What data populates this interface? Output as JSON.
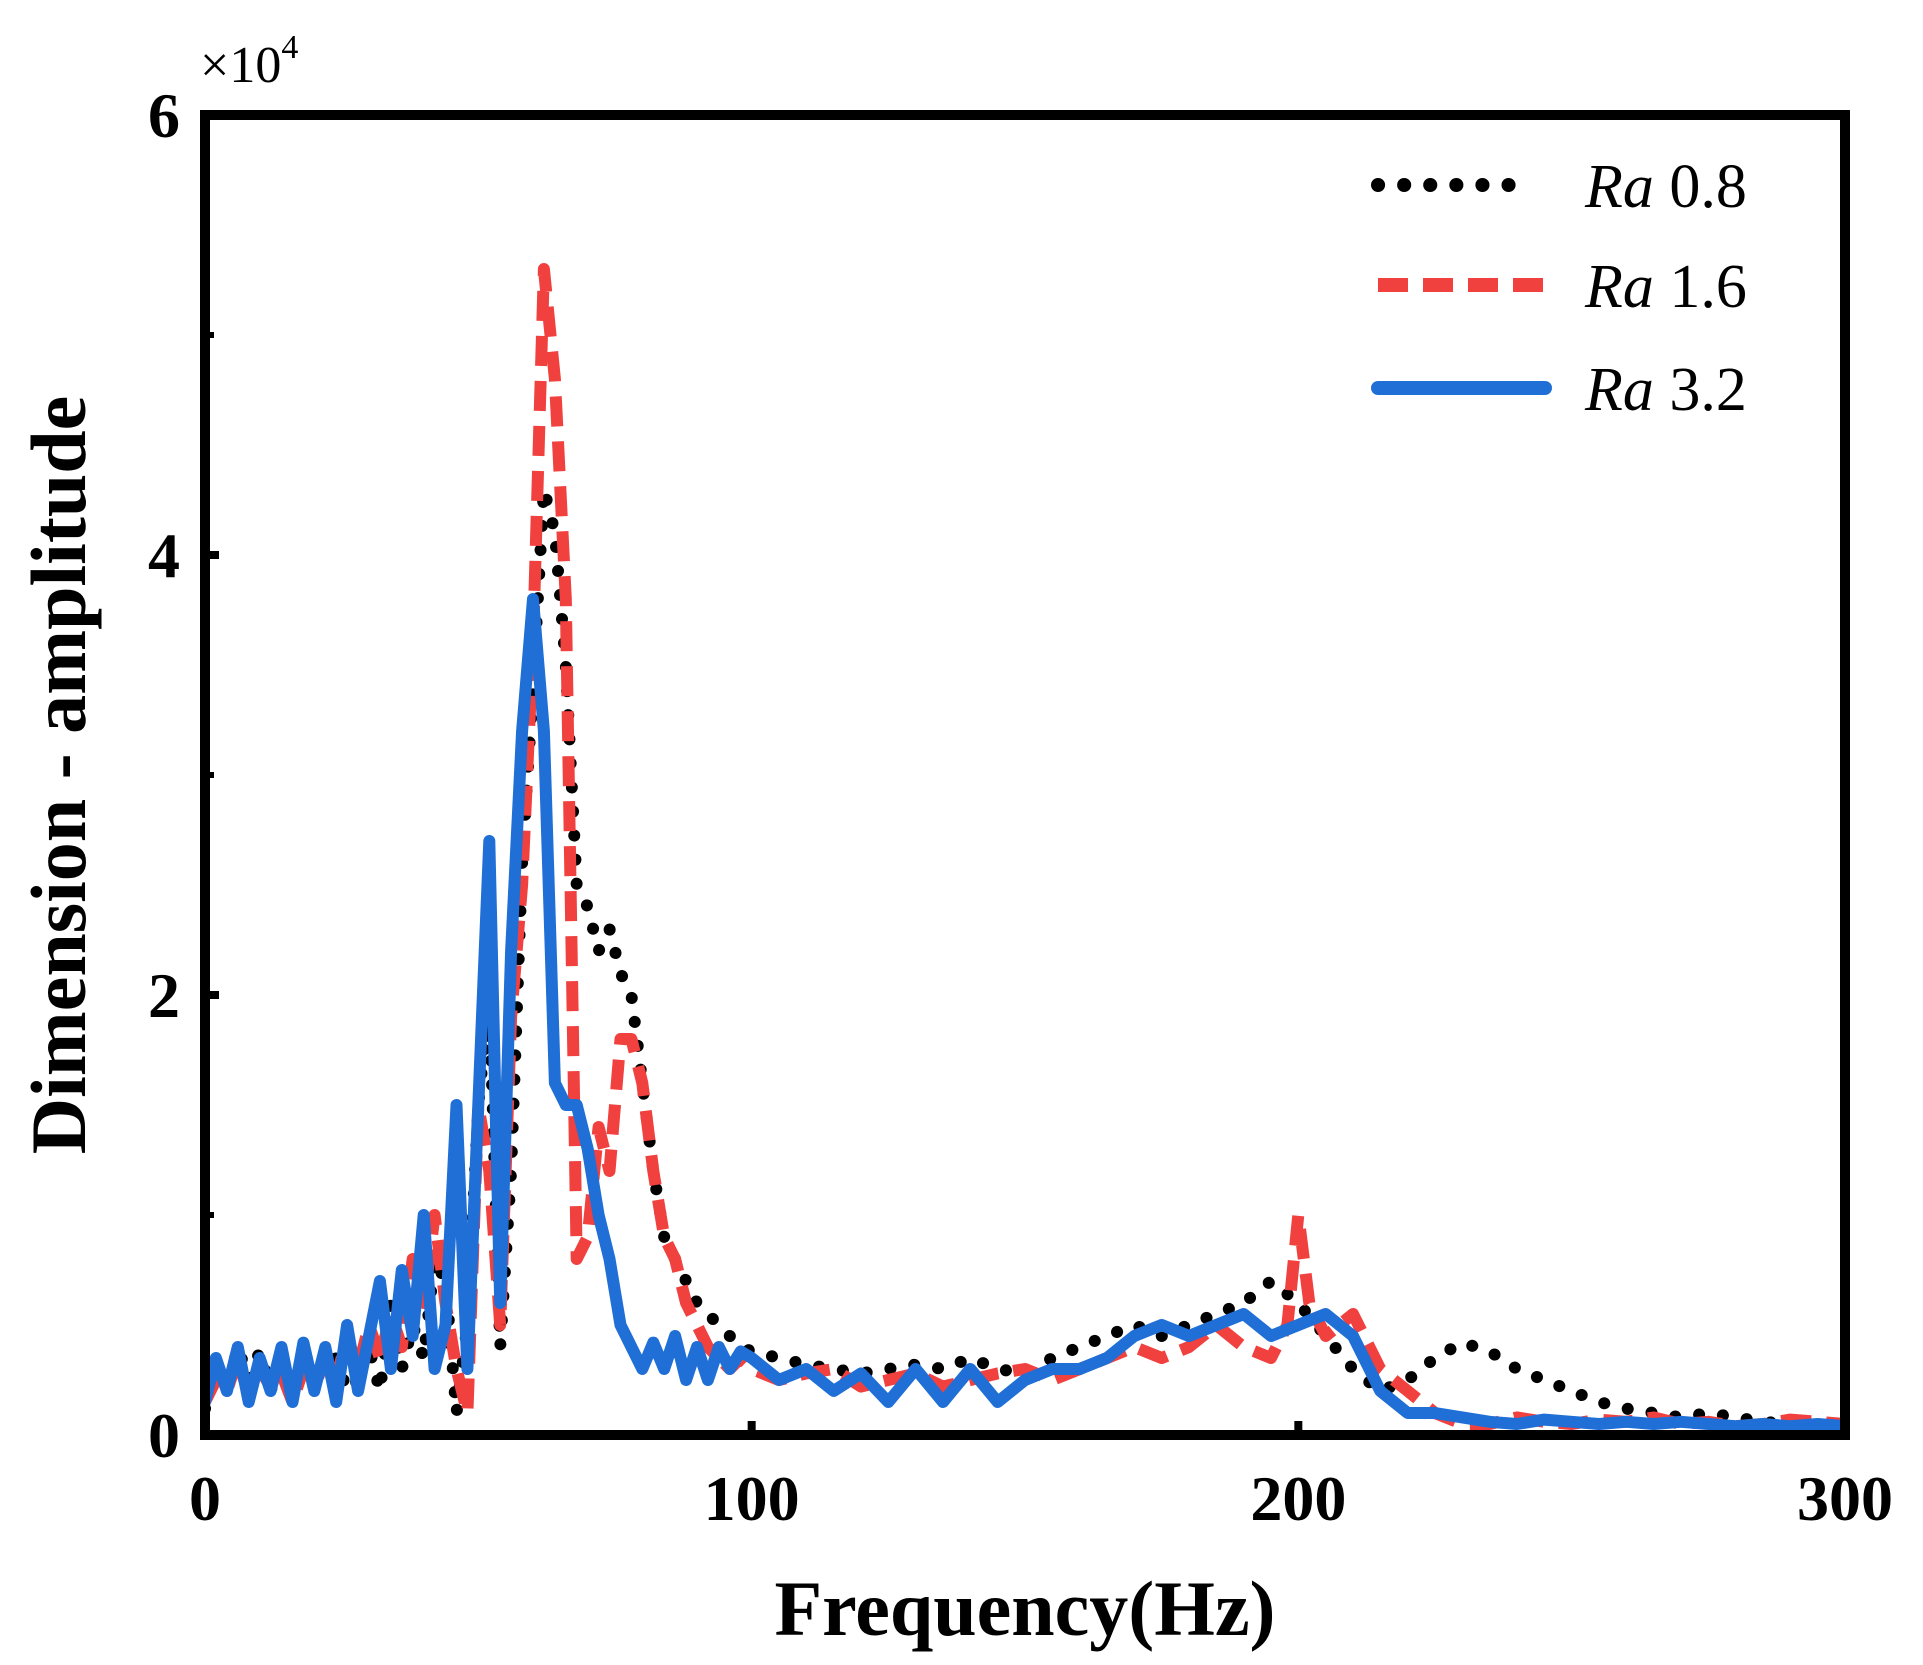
{
  "chart_data": {
    "type": "line",
    "title": "",
    "xlabel": "Frequency(Hz)",
    "ylabel": "Dimension - amplitude",
    "y_multiplier_label": "×10",
    "y_multiplier_exponent": "4",
    "xlim": [
      0,
      300
    ],
    "ylim": [
      0,
      6
    ],
    "xticks": [
      0,
      100,
      200,
      300
    ],
    "yticks": [
      0,
      2,
      4,
      6
    ],
    "xtick_labels": [
      "0",
      "100",
      "200",
      "300"
    ],
    "ytick_labels": [
      "0",
      "2",
      "4",
      "6"
    ],
    "grid": false,
    "legend_position": "top-right",
    "series": [
      {
        "name": "Ra 0.8",
        "name_italic": "Ra",
        "name_value": "0.8",
        "color": "#000000",
        "style": "dotted",
        "x": [
          0,
          2,
          4,
          6,
          8,
          10,
          12,
          14,
          16,
          18,
          20,
          22,
          24,
          26,
          28,
          30,
          32,
          34,
          36,
          38,
          40,
          42,
          44,
          46,
          48,
          50,
          52,
          54,
          56,
          58,
          60,
          62,
          64,
          66,
          68,
          70,
          72,
          74,
          76,
          78,
          80,
          82,
          84,
          86,
          88,
          90,
          92,
          94,
          96,
          98,
          100,
          105,
          110,
          115,
          120,
          125,
          130,
          135,
          140,
          145,
          150,
          155,
          160,
          165,
          170,
          175,
          180,
          185,
          190,
          195,
          200,
          205,
          210,
          215,
          220,
          225,
          230,
          235,
          240,
          245,
          250,
          255,
          260,
          265,
          270,
          275,
          280,
          285,
          290,
          295,
          300
        ],
        "y": [
          0.12,
          0.35,
          0.2,
          0.4,
          0.25,
          0.38,
          0.2,
          0.35,
          0.2,
          0.32,
          0.25,
          0.3,
          0.35,
          0.2,
          0.25,
          0.4,
          0.2,
          0.6,
          0.3,
          0.5,
          0.35,
          0.8,
          0.7,
          0.1,
          0.5,
          1.5,
          2.0,
          0.4,
          1.2,
          2.6,
          3.4,
          4.3,
          4.1,
          3.5,
          2.5,
          2.4,
          2.2,
          2.3,
          2.1,
          2.0,
          1.6,
          1.2,
          0.9,
          0.8,
          0.7,
          0.6,
          0.55,
          0.5,
          0.45,
          0.4,
          0.38,
          0.35,
          0.32,
          0.3,
          0.28,
          0.3,
          0.32,
          0.3,
          0.35,
          0.3,
          0.28,
          0.35,
          0.4,
          0.45,
          0.5,
          0.45,
          0.5,
          0.55,
          0.6,
          0.7,
          0.6,
          0.45,
          0.3,
          0.2,
          0.25,
          0.35,
          0.42,
          0.38,
          0.3,
          0.25,
          0.2,
          0.15,
          0.12,
          0.1,
          0.08,
          0.1,
          0.08,
          0.06,
          0.05,
          0.04,
          0.03
        ]
      },
      {
        "name": "Ra 1.6",
        "name_italic": "Ra",
        "name_value": "1.6",
        "color": "#f0413f",
        "style": "dashed",
        "x": [
          0,
          2,
          4,
          6,
          8,
          10,
          12,
          14,
          16,
          18,
          20,
          22,
          24,
          26,
          28,
          30,
          32,
          34,
          36,
          38,
          40,
          42,
          44,
          46,
          48,
          50,
          52,
          54,
          56,
          58,
          60,
          62,
          64,
          66,
          68,
          70,
          72,
          74,
          76,
          78,
          80,
          82,
          84,
          86,
          88,
          90,
          92,
          94,
          96,
          98,
          100,
          105,
          110,
          115,
          120,
          125,
          130,
          135,
          140,
          145,
          150,
          155,
          160,
          165,
          170,
          175,
          180,
          185,
          190,
          195,
          198,
          200,
          202,
          205,
          210,
          215,
          220,
          225,
          230,
          235,
          240,
          245,
          250,
          255,
          260,
          265,
          270,
          275,
          280,
          285,
          290,
          295,
          300
        ],
        "y": [
          0.15,
          0.25,
          0.2,
          0.35,
          0.18,
          0.3,
          0.22,
          0.28,
          0.15,
          0.3,
          0.22,
          0.35,
          0.25,
          0.45,
          0.3,
          0.5,
          0.35,
          0.55,
          0.4,
          0.8,
          0.6,
          1.0,
          0.6,
          0.3,
          0.1,
          1.5,
          1.2,
          0.5,
          1.9,
          2.5,
          3.6,
          5.3,
          4.8,
          3.8,
          0.8,
          0.9,
          1.4,
          1.2,
          1.8,
          1.8,
          1.6,
          1.2,
          0.9,
          0.8,
          0.6,
          0.5,
          0.4,
          0.35,
          0.3,
          0.35,
          0.3,
          0.25,
          0.28,
          0.3,
          0.22,
          0.25,
          0.28,
          0.22,
          0.25,
          0.28,
          0.3,
          0.25,
          0.3,
          0.35,
          0.4,
          0.35,
          0.4,
          0.5,
          0.4,
          0.35,
          0.5,
          1.0,
          0.6,
          0.45,
          0.55,
          0.3,
          0.2,
          0.1,
          0.05,
          0.05,
          0.08,
          0.06,
          0.05,
          0.07,
          0.06,
          0.08,
          0.05,
          0.06,
          0.04,
          0.05,
          0.07,
          0.06,
          0.05
        ]
      },
      {
        "name": "Ra 3.2",
        "name_italic": "Ra",
        "name_value": "3.2",
        "color": "#1f6fd6",
        "style": "solid",
        "x": [
          0,
          2,
          4,
          6,
          8,
          10,
          12,
          14,
          16,
          18,
          20,
          22,
          24,
          26,
          28,
          30,
          32,
          34,
          36,
          38,
          40,
          42,
          44,
          46,
          48,
          50,
          52,
          54,
          56,
          58,
          60,
          62,
          64,
          66,
          68,
          70,
          72,
          74,
          76,
          78,
          80,
          82,
          84,
          86,
          88,
          90,
          92,
          94,
          96,
          98,
          100,
          105,
          110,
          115,
          120,
          125,
          130,
          135,
          140,
          145,
          150,
          155,
          160,
          165,
          170,
          175,
          180,
          185,
          190,
          195,
          200,
          205,
          210,
          215,
          220,
          225,
          230,
          235,
          240,
          245,
          250,
          255,
          260,
          265,
          270,
          275,
          280,
          285,
          290,
          295,
          300
        ],
        "y": [
          0.15,
          0.35,
          0.2,
          0.4,
          0.15,
          0.35,
          0.2,
          0.4,
          0.15,
          0.42,
          0.2,
          0.4,
          0.15,
          0.5,
          0.2,
          0.45,
          0.7,
          0.3,
          0.75,
          0.45,
          1.0,
          0.3,
          0.5,
          1.5,
          0.3,
          1.5,
          2.7,
          0.6,
          2.2,
          3.2,
          3.8,
          3.2,
          1.6,
          1.5,
          1.5,
          1.3,
          1.0,
          0.8,
          0.5,
          0.4,
          0.3,
          0.42,
          0.3,
          0.45,
          0.25,
          0.4,
          0.25,
          0.4,
          0.3,
          0.38,
          0.35,
          0.25,
          0.3,
          0.2,
          0.28,
          0.15,
          0.3,
          0.15,
          0.3,
          0.15,
          0.25,
          0.3,
          0.3,
          0.35,
          0.45,
          0.5,
          0.45,
          0.5,
          0.55,
          0.45,
          0.5,
          0.55,
          0.45,
          0.2,
          0.1,
          0.1,
          0.08,
          0.06,
          0.05,
          0.07,
          0.06,
          0.05,
          0.06,
          0.05,
          0.06,
          0.05,
          0.04,
          0.05,
          0.04,
          0.05,
          0.04
        ]
      }
    ]
  }
}
